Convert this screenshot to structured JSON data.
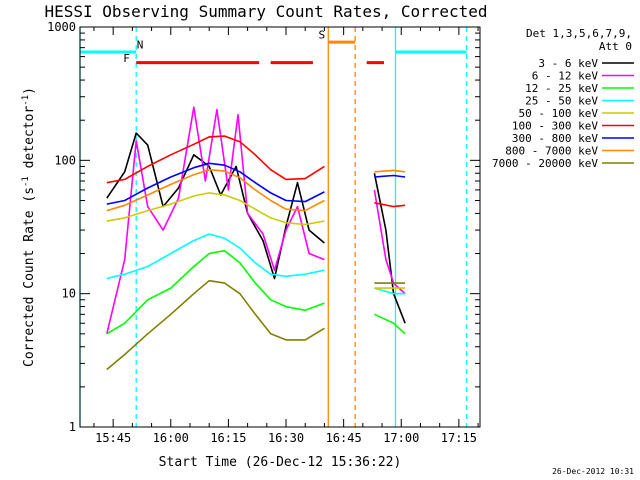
{
  "chart_data": {
    "type": "line",
    "title": "HESSI Observing Summary Count Rates, Corrected",
    "xlabel": "Start Time (26-Dec-12 15:36:22)",
    "ylabel": "Corrected Count Rate (s",
    "ylabel_sup1": "-1",
    "ylabel_mid": " detector",
    "ylabel_sup2": "-1",
    "ylabel_end": ")",
    "yscale": "log",
    "ylim": [
      1,
      1000
    ],
    "xlim": [
      "15:36:22",
      "17:20:30"
    ],
    "x_ticks": [
      "15:45",
      "16:00",
      "16:15",
      "16:30",
      "16:45",
      "17:00",
      "17:15"
    ],
    "y_ticks": [
      "1",
      "10",
      "100",
      "1000"
    ],
    "legend_header": [
      "Det 1,3,5,6,7,9,",
      "Att 0"
    ],
    "footer_date": "26-Dec-2012 10:31",
    "series": [
      {
        "name": "3 - 6 keV",
        "color": "#000000",
        "points": [
          [
            "15:43:20",
            52
          ],
          [
            "15:48:00",
            82
          ],
          [
            "15:51:00",
            160
          ],
          [
            "15:54:00",
            130
          ],
          [
            "15:58:00",
            45
          ],
          [
            "16:02:00",
            62
          ],
          [
            "16:06:00",
            110
          ],
          [
            "16:10:00",
            90
          ],
          [
            "16:13:00",
            55
          ],
          [
            "16:17:00",
            90
          ],
          [
            "16:20:00",
            40
          ],
          [
            "16:24:00",
            25
          ],
          [
            "16:27:00",
            13
          ],
          [
            "16:30:00",
            32
          ],
          [
            "16:33:00",
            68
          ],
          [
            "16:36:00",
            30
          ],
          [
            "16:40:00",
            24
          ],
          [
            "16:53:00",
            80
          ],
          [
            "16:56:00",
            30
          ],
          [
            "16:58:00",
            10
          ],
          [
            "17:01:00",
            6
          ]
        ]
      },
      {
        "name": "6 - 12 keV",
        "color": "#ff00ff",
        "points": [
          [
            "15:43:20",
            5
          ],
          [
            "15:48:00",
            18
          ],
          [
            "15:51:00",
            140
          ],
          [
            "15:54:00",
            45
          ],
          [
            "15:58:00",
            30
          ],
          [
            "16:02:00",
            52
          ],
          [
            "16:06:00",
            250
          ],
          [
            "16:09:00",
            70
          ],
          [
            "16:12:00",
            240
          ],
          [
            "16:15:00",
            60
          ],
          [
            "16:17:30",
            220
          ],
          [
            "16:20:00",
            40
          ],
          [
            "16:24:00",
            28
          ],
          [
            "16:27:00",
            15
          ],
          [
            "16:30:00",
            30
          ],
          [
            "16:33:00",
            45
          ],
          [
            "16:36:00",
            20
          ],
          [
            "16:40:00",
            18
          ],
          [
            "16:53:00",
            60
          ],
          [
            "16:56:00",
            18
          ],
          [
            "16:58:00",
            12
          ],
          [
            "17:01:00",
            10
          ]
        ]
      },
      {
        "name": "12 - 25 keV",
        "color": "#00ff00",
        "points": [
          [
            "15:43:20",
            5
          ],
          [
            "15:48:00",
            6
          ],
          [
            "15:54:00",
            9
          ],
          [
            "16:00:00",
            11
          ],
          [
            "16:06:00",
            16
          ],
          [
            "16:10:00",
            20
          ],
          [
            "16:14:00",
            21
          ],
          [
            "16:18:00",
            17
          ],
          [
            "16:22:00",
            12
          ],
          [
            "16:26:00",
            9
          ],
          [
            "16:30:00",
            8
          ],
          [
            "16:35:00",
            7.5
          ],
          [
            "16:40:00",
            8.5
          ],
          [
            "16:53:00",
            7
          ],
          [
            "16:58:00",
            6
          ],
          [
            "17:01:00",
            5
          ]
        ]
      },
      {
        "name": "25 - 50 keV",
        "color": "#00ffff",
        "points": [
          [
            "15:43:20",
            13
          ],
          [
            "15:48:00",
            14
          ],
          [
            "15:54:00",
            16
          ],
          [
            "16:00:00",
            20
          ],
          [
            "16:06:00",
            25
          ],
          [
            "16:10:00",
            28
          ],
          [
            "16:14:00",
            26
          ],
          [
            "16:18:00",
            22
          ],
          [
            "16:22:00",
            17
          ],
          [
            "16:26:00",
            14
          ],
          [
            "16:30:00",
            13.5
          ],
          [
            "16:35:00",
            14
          ],
          [
            "16:40:00",
            15
          ],
          [
            "16:53:00",
            11
          ],
          [
            "16:58:00",
            10
          ],
          [
            "17:01:00",
            10
          ]
        ]
      },
      {
        "name": "50 - 100 keV",
        "color": "#cccc00",
        "points": [
          [
            "15:43:20",
            35
          ],
          [
            "15:48:00",
            37
          ],
          [
            "15:54:00",
            42
          ],
          [
            "16:00:00",
            47
          ],
          [
            "16:06:00",
            54
          ],
          [
            "16:10:00",
            57
          ],
          [
            "16:14:00",
            55
          ],
          [
            "16:18:00",
            50
          ],
          [
            "16:22:00",
            43
          ],
          [
            "16:26:00",
            37
          ],
          [
            "16:30:00",
            34
          ],
          [
            "16:35:00",
            33
          ],
          [
            "16:40:00",
            35
          ],
          [
            "16:53:00",
            11
          ],
          [
            "16:58:00",
            11
          ],
          [
            "17:01:00",
            11
          ]
        ]
      },
      {
        "name": "100 - 300 keV",
        "color": "#ff0000",
        "points": [
          [
            "15:43:20",
            68
          ],
          [
            "15:48:00",
            72
          ],
          [
            "15:54:00",
            90
          ],
          [
            "16:00:00",
            110
          ],
          [
            "16:06:00",
            132
          ],
          [
            "16:10:00",
            150
          ],
          [
            "16:14:00",
            152
          ],
          [
            "16:18:00",
            138
          ],
          [
            "16:22:00",
            110
          ],
          [
            "16:26:00",
            85
          ],
          [
            "16:30:00",
            72
          ],
          [
            "16:35:00",
            73
          ],
          [
            "16:40:00",
            90
          ],
          [
            "16:53:00",
            48
          ],
          [
            "16:58:00",
            45
          ],
          [
            "17:01:00",
            46
          ]
        ]
      },
      {
        "name": "300 - 800 keV",
        "color": "#0000ff",
        "points": [
          [
            "15:43:20",
            47
          ],
          [
            "15:48:00",
            50
          ],
          [
            "15:54:00",
            62
          ],
          [
            "16:00:00",
            75
          ],
          [
            "16:06:00",
            88
          ],
          [
            "16:10:00",
            95
          ],
          [
            "16:14:00",
            92
          ],
          [
            "16:18:00",
            82
          ],
          [
            "16:22:00",
            68
          ],
          [
            "16:26:00",
            57
          ],
          [
            "16:30:00",
            50
          ],
          [
            "16:35:00",
            49
          ],
          [
            "16:40:00",
            58
          ],
          [
            "16:53:00",
            75
          ],
          [
            "16:58:00",
            77
          ],
          [
            "17:01:00",
            75
          ]
        ]
      },
      {
        "name": "800 - 7000 keV",
        "color": "#ff8800",
        "points": [
          [
            "15:43:20",
            42
          ],
          [
            "15:48:00",
            46
          ],
          [
            "15:54:00",
            55
          ],
          [
            "16:00:00",
            66
          ],
          [
            "16:06:00",
            78
          ],
          [
            "16:10:00",
            85
          ],
          [
            "16:14:00",
            83
          ],
          [
            "16:18:00",
            74
          ],
          [
            "16:22:00",
            60
          ],
          [
            "16:26:00",
            50
          ],
          [
            "16:30:00",
            43
          ],
          [
            "16:35:00",
            42
          ],
          [
            "16:40:00",
            50
          ],
          [
            "16:53:00",
            82
          ],
          [
            "16:58:00",
            84
          ],
          [
            "17:01:00",
            82
          ]
        ]
      },
      {
        "name": "7000 - 20000 keV",
        "color": "#808000",
        "points": [
          [
            "15:43:20",
            2.7
          ],
          [
            "15:48:00",
            3.5
          ],
          [
            "15:54:00",
            5
          ],
          [
            "16:00:00",
            7
          ],
          [
            "16:06:00",
            10
          ],
          [
            "16:10:00",
            12.5
          ],
          [
            "16:14:00",
            12
          ],
          [
            "16:18:00",
            10
          ],
          [
            "16:22:00",
            7
          ],
          [
            "16:26:00",
            5
          ],
          [
            "16:30:00",
            4.5
          ],
          [
            "16:35:00",
            4.5
          ],
          [
            "16:40:00",
            5.5
          ],
          [
            "16:53:00",
            12
          ],
          [
            "16:58:00",
            12
          ],
          [
            "17:01:00",
            12
          ]
        ]
      }
    ],
    "flag_bars": [
      {
        "label": "",
        "color": "#00ffff",
        "y": 650,
        "segments": [
          [
            "15:36:22",
            "15:51:00"
          ],
          [
            "16:58:30",
            "17:17:00"
          ]
        ]
      },
      {
        "label": "F",
        "color": "#ff0000",
        "y": 540,
        "segments": [
          [
            "15:51:00",
            "16:23:00"
          ],
          [
            "16:26:00",
            "16:37:00"
          ],
          [
            "16:51:00",
            "16:55:30"
          ]
        ]
      },
      {
        "label": "S",
        "color": "#ff8800",
        "y": 770,
        "segments": [
          [
            "16:41:00",
            "16:48:00"
          ]
        ]
      }
    ],
    "flag_labels": [
      {
        "text": "N",
        "color": "#00ffff",
        "time": "15:52:00",
        "y": 690
      },
      {
        "text": "F",
        "color": "#ff0000",
        "time": "15:48:30",
        "y": 545
      },
      {
        "text": "S",
        "color": "#ff8800",
        "time": "16:39:20",
        "y": 820
      }
    ],
    "vertical_markers": [
      {
        "time": "15:36:22",
        "color": "#00ffff",
        "style": "solid"
      },
      {
        "time": "15:51:00",
        "color": "#00ffff",
        "style": "dashed"
      },
      {
        "time": "16:41:00",
        "color": "#ff8800",
        "style": "solid"
      },
      {
        "time": "16:48:00",
        "color": "#ff8800",
        "style": "dashed"
      },
      {
        "time": "16:58:30",
        "color": "#00ffff",
        "style": "solid"
      },
      {
        "time": "17:17:00",
        "color": "#00ffff",
        "style": "dashed"
      }
    ]
  }
}
